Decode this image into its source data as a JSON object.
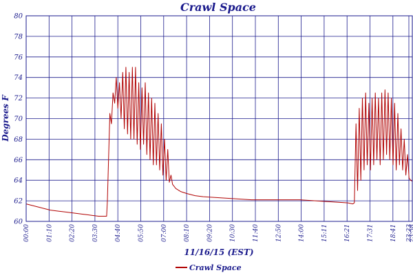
{
  "chart_data": {
    "type": "line",
    "title": "Crawl Space",
    "xlabel": "11/16/15 (EST)",
    "ylabel": "Degrees F",
    "ylim": [
      60,
      80
    ],
    "yticks": [
      60,
      62,
      64,
      66,
      68,
      70,
      72,
      74,
      76,
      78,
      80
    ],
    "xlim_hours": [
      0,
      24
    ],
    "x_tick_labels": [
      "00:00",
      "01:10",
      "02:20",
      "03:30",
      "04:40",
      "05:50",
      "07:00",
      "08:10",
      "09:20",
      "10:30",
      "11:40",
      "12:50",
      "14:00",
      "15:11",
      "16:21",
      "17:31",
      "18:41",
      "19:51",
      "21:01",
      "22:11",
      "23:23",
      "23:58"
    ],
    "grid": true,
    "legend": "bottom-center",
    "colors": {
      "series": "#b00000",
      "text": "#1a1a8c",
      "grid": "#1a1a8c"
    },
    "series": [
      {
        "name": "Crawl Space",
        "x": [
          0.0,
          0.5,
          1.0,
          1.5,
          2.0,
          2.5,
          3.0,
          3.5,
          4.0,
          4.5,
          5.0,
          5.05,
          5.2,
          5.3,
          5.4,
          5.5,
          5.6,
          5.7,
          5.8,
          5.9,
          6.0,
          6.1,
          6.2,
          6.3,
          6.4,
          6.5,
          6.6,
          6.7,
          6.8,
          6.9,
          7.0,
          7.1,
          7.2,
          7.3,
          7.4,
          7.5,
          7.6,
          7.7,
          7.8,
          7.9,
          8.0,
          8.1,
          8.2,
          8.3,
          8.4,
          8.5,
          8.6,
          8.7,
          8.8,
          8.9,
          9.0,
          9.1,
          9.3,
          9.6,
          10.0,
          10.5,
          11.0,
          12.0,
          13.0,
          14.0,
          15.0,
          16.0,
          17.0,
          18.0,
          19.0,
          20.0,
          20.3,
          20.4,
          20.5,
          20.6,
          20.7,
          20.8,
          20.9,
          21.0,
          21.1,
          21.2,
          21.3,
          21.4,
          21.5,
          21.6,
          21.7,
          21.8,
          21.9,
          22.0,
          22.1,
          22.2,
          22.3,
          22.4,
          22.5,
          22.6,
          22.7,
          22.8,
          22.9,
          23.0,
          23.1,
          23.2,
          23.3,
          23.4,
          23.5,
          23.6,
          23.7,
          23.8,
          23.9,
          24.0
        ],
        "y": [
          61.7,
          61.5,
          61.3,
          61.1,
          61.0,
          60.9,
          60.8,
          60.7,
          60.6,
          60.5,
          60.5,
          62.0,
          70.5,
          69.5,
          72.5,
          71.5,
          74.0,
          71.0,
          73.5,
          70.0,
          74.5,
          69.0,
          75.0,
          68.5,
          74.5,
          68.0,
          75.0,
          68.0,
          75.0,
          67.5,
          73.5,
          67.0,
          73.0,
          67.5,
          73.5,
          66.5,
          72.5,
          66.0,
          72.0,
          65.5,
          71.5,
          65.5,
          70.5,
          65.0,
          69.5,
          64.5,
          68.0,
          64.0,
          67.0,
          63.8,
          64.5,
          63.6,
          63.2,
          62.9,
          62.7,
          62.5,
          62.4,
          62.3,
          62.2,
          62.1,
          62.1,
          62.1,
          62.1,
          62.0,
          61.9,
          61.8,
          61.7,
          61.8,
          69.5,
          63.0,
          71.0,
          64.0,
          72.0,
          65.0,
          72.5,
          65.5,
          71.5,
          65.0,
          72.0,
          65.5,
          72.5,
          66.0,
          72.0,
          65.5,
          72.5,
          66.0,
          72.8,
          66.5,
          72.5,
          66.0,
          72.0,
          65.5,
          71.5,
          65.0,
          70.5,
          65.5,
          69.0,
          65.0,
          68.0,
          64.5,
          66.5,
          64.2,
          64.0,
          63.9
        ]
      }
    ]
  }
}
